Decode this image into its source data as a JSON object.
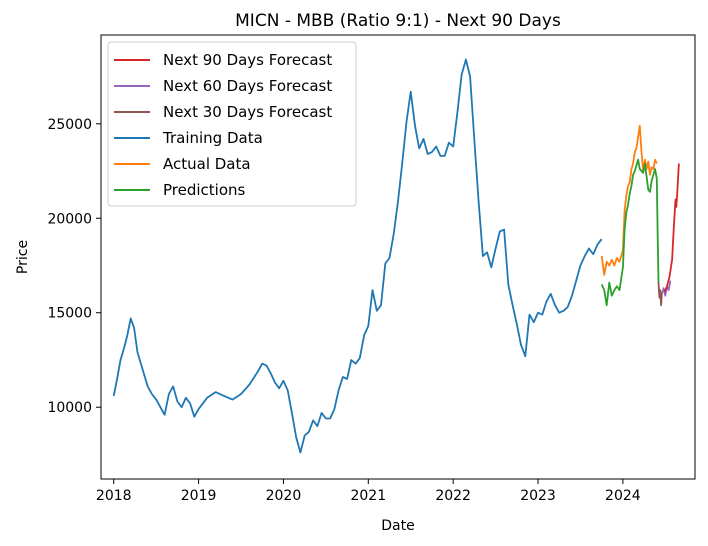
{
  "chart_data": {
    "type": "line",
    "title": "MICN - MBB (Ratio 9:1) - Next 90 Days",
    "xlabel": "Date",
    "ylabel": "Price",
    "xlim": [
      2017.85,
      2024.85
    ],
    "ylim": [
      6200,
      29700
    ],
    "x_ticks": [
      2018,
      2019,
      2020,
      2021,
      2022,
      2023,
      2024
    ],
    "x_tick_labels": [
      "2018",
      "2019",
      "2020",
      "2021",
      "2022",
      "2023",
      "2024"
    ],
    "y_ticks": [
      10000,
      15000,
      20000,
      25000
    ],
    "y_tick_labels": [
      "10000",
      "15000",
      "20000",
      "25000"
    ],
    "grid": false,
    "legend_position": "top-left",
    "series": [
      {
        "name": "Next 90 Days Forecast",
        "color": "#d62728",
        "x": [
          2024.49,
          2024.52,
          2024.55,
          2024.58,
          2024.6,
          2024.62,
          2024.63,
          2024.64,
          2024.66
        ],
        "y": [
          16100,
          16400,
          16900,
          17800,
          19500,
          21000,
          20600,
          21300,
          22900
        ]
      },
      {
        "name": "Next 60 Days Forecast",
        "color": "#9467bd",
        "x": [
          2024.46,
          2024.48,
          2024.5,
          2024.52,
          2024.54,
          2024.56
        ],
        "y": [
          16000,
          16300,
          15900,
          16400,
          16200,
          16700
        ]
      },
      {
        "name": "Next 30 Days Forecast",
        "color": "#8c564b",
        "x": [
          2024.42,
          2024.43,
          2024.44,
          2024.45,
          2024.46
        ],
        "y": [
          16600,
          15800,
          16200,
          15400,
          16100
        ]
      },
      {
        "name": "Training Data",
        "color": "#1f77b4",
        "x": [
          2018.0,
          2018.04,
          2018.08,
          2018.12,
          2018.16,
          2018.2,
          2018.24,
          2018.28,
          2018.32,
          2018.36,
          2018.4,
          2018.45,
          2018.5,
          2018.55,
          2018.6,
          2018.65,
          2018.7,
          2018.75,
          2018.8,
          2018.85,
          2018.9,
          2018.95,
          2019.0,
          2019.1,
          2019.2,
          2019.3,
          2019.4,
          2019.5,
          2019.6,
          2019.7,
          2019.75,
          2019.8,
          2019.85,
          2019.9,
          2019.95,
          2020.0,
          2020.05,
          2020.1,
          2020.15,
          2020.2,
          2020.25,
          2020.3,
          2020.35,
          2020.4,
          2020.45,
          2020.5,
          2020.55,
          2020.6,
          2020.65,
          2020.7,
          2020.75,
          2020.8,
          2020.85,
          2020.9,
          2020.95,
          2021.0,
          2021.05,
          2021.1,
          2021.15,
          2021.2,
          2021.25,
          2021.3,
          2021.35,
          2021.4,
          2021.45,
          2021.5,
          2021.55,
          2021.6,
          2021.65,
          2021.7,
          2021.75,
          2021.8,
          2021.85,
          2021.9,
          2021.95,
          2022.0,
          2022.05,
          2022.1,
          2022.15,
          2022.2,
          2022.25,
          2022.3,
          2022.35,
          2022.4,
          2022.45,
          2022.5,
          2022.55,
          2022.6,
          2022.65,
          2022.7,
          2022.75,
          2022.8,
          2022.85,
          2022.9,
          2022.95,
          2023.0,
          2023.05,
          2023.1,
          2023.15,
          2023.2,
          2023.25,
          2023.3,
          2023.35,
          2023.4,
          2023.45,
          2023.5,
          2023.55,
          2023.6,
          2023.65,
          2023.7,
          2023.75
        ],
        "y": [
          10600,
          11500,
          12500,
          13100,
          13800,
          14700,
          14200,
          12900,
          12300,
          11700,
          11100,
          10700,
          10400,
          10000,
          9600,
          10700,
          11100,
          10300,
          10000,
          10500,
          10200,
          9500,
          9900,
          10500,
          10800,
          10600,
          10400,
          10700,
          11200,
          11900,
          12300,
          12200,
          11800,
          11300,
          11000,
          11400,
          10900,
          9700,
          8400,
          7600,
          8500,
          8700,
          9300,
          9000,
          9700,
          9400,
          9400,
          9900,
          10900,
          11600,
          11500,
          12500,
          12300,
          12600,
          13800,
          14300,
          16200,
          15100,
          15400,
          17600,
          17900,
          19200,
          20900,
          22900,
          25100,
          26700,
          24900,
          23700,
          24200,
          23400,
          23500,
          23800,
          23300,
          23300,
          24000,
          23800,
          25600,
          27600,
          28400,
          27500,
          24100,
          20900,
          18000,
          18200,
          17400,
          18400,
          19300,
          19400,
          16500,
          15400,
          14400,
          13300,
          12700,
          14900,
          14500,
          15000,
          14900,
          15600,
          16000,
          15400,
          15000,
          15100,
          15300,
          15900,
          16700,
          17500,
          18000,
          18400,
          18100,
          18600,
          18900
        ]
      },
      {
        "name": "Actual Data",
        "color": "#ff7f0e",
        "x": [
          2023.75,
          2023.78,
          2023.81,
          2023.84,
          2023.87,
          2023.9,
          2023.93,
          2023.96,
          2024.0,
          2024.02,
          2024.04,
          2024.06,
          2024.08,
          2024.1,
          2024.12,
          2024.14,
          2024.16,
          2024.18,
          2024.2,
          2024.22,
          2024.24,
          2024.26,
          2024.28,
          2024.3,
          2024.32,
          2024.34,
          2024.36,
          2024.38,
          2024.4
        ],
        "y": [
          18000,
          17000,
          17700,
          17500,
          17800,
          17500,
          17900,
          17700,
          18300,
          20400,
          21200,
          21700,
          21900,
          22600,
          22900,
          23500,
          23700,
          24300,
          24900,
          23500,
          22500,
          23100,
          22600,
          23000,
          22300,
          22700,
          22600,
          23100,
          22900
        ]
      },
      {
        "name": "Predictions",
        "color": "#2ca02c",
        "x": [
          2023.75,
          2023.78,
          2023.81,
          2023.84,
          2023.87,
          2023.9,
          2023.93,
          2023.96,
          2024.0,
          2024.02,
          2024.04,
          2024.06,
          2024.08,
          2024.1,
          2024.12,
          2024.14,
          2024.16,
          2024.18,
          2024.2,
          2024.22,
          2024.24,
          2024.26,
          2024.28,
          2024.3,
          2024.32,
          2024.34,
          2024.36,
          2024.38,
          2024.4,
          2024.41,
          2024.42
        ],
        "y": [
          16500,
          16200,
          15400,
          16600,
          15900,
          16200,
          16400,
          16200,
          17400,
          19400,
          20300,
          20700,
          21300,
          21700,
          22300,
          22500,
          22800,
          23100,
          22600,
          22500,
          22400,
          22900,
          22200,
          21500,
          21400,
          22000,
          22300,
          22600,
          22100,
          19000,
          16600
        ]
      }
    ]
  }
}
